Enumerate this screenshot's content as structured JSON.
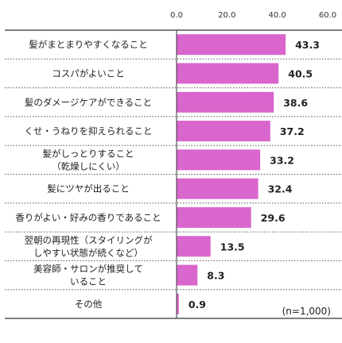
{
  "chart_data": {
    "type": "bar",
    "orientation": "horizontal",
    "xlim": [
      0,
      60
    ],
    "ticks": [
      "0.0",
      "20.0",
      "40.0",
      "60.0"
    ],
    "tick_values": [
      0,
      20,
      40,
      60
    ],
    "categories": [
      [
        "髪がまとまりやすくなること"
      ],
      [
        "コスパがよいこと"
      ],
      [
        "髪のダメージケアができること"
      ],
      [
        "くせ・うねりを抑えられること"
      ],
      [
        "髪がしっとりすること",
        "（乾燥しにくい）"
      ],
      [
        "髪にツヤが出ること"
      ],
      [
        "香りがよい・好みの香りであること"
      ],
      [
        "翌朝の再現性（スタイリングが",
        "しやすい状態が続くなど）"
      ],
      [
        "美容師・サロンが推奨して",
        "いること"
      ],
      [
        "その他"
      ]
    ],
    "values": [
      43.3,
      40.5,
      38.6,
      37.2,
      33.2,
      32.4,
      29.6,
      13.5,
      8.3,
      0.9
    ],
    "value_labels": [
      "43.3",
      "40.5",
      "38.6",
      "37.2",
      "33.2",
      "32.4",
      "29.6",
      "13.5",
      "8.3",
      "0.9"
    ],
    "bar_color": "#d966cc",
    "note": "(n=1,000)",
    "grid": false
  }
}
